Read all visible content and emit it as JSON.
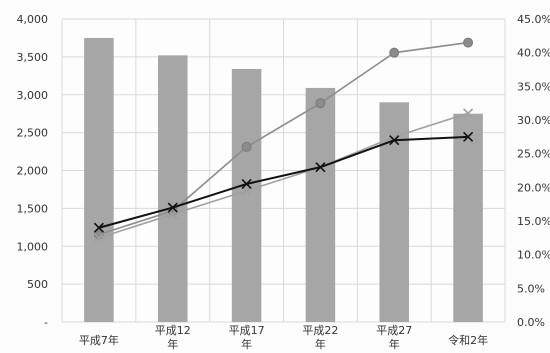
{
  "chart_data": {
    "type": "bar",
    "categories": [
      "平成7年",
      "平成12年",
      "平成17年",
      "平成22年",
      "平成27年",
      "令和2年"
    ],
    "y_left": {
      "min": 0,
      "max": 4000,
      "ticks": [
        0,
        500,
        1000,
        1500,
        2000,
        2500,
        3000,
        3500,
        4000
      ],
      "tick_labels": [
        "-",
        "500",
        "1,000",
        "1,500",
        "2,000",
        "2,500",
        "3,000",
        "3,500",
        "4,000"
      ]
    },
    "y_right": {
      "min": 0,
      "max": 45,
      "ticks": [
        0,
        5,
        10,
        15,
        20,
        25,
        30,
        35,
        40,
        45
      ],
      "tick_labels": [
        "0.0%",
        "5.0%",
        "10.0%",
        "15.0%",
        "20.0%",
        "25.0%",
        "30.0%",
        "35.0%",
        "40.0%",
        "45.0%"
      ]
    },
    "grid": true,
    "legend": "none",
    "series": [
      {
        "type": "bar",
        "axis": "left",
        "color": "#a6a6a6",
        "values": [
          3750,
          3520,
          3340,
          3090,
          2900,
          2750
        ]
      },
      {
        "type": "line",
        "axis": "right",
        "marker": "circle",
        "color": "#8c8c8c",
        "values": [
          13.0,
          16.5,
          26.0,
          32.5,
          40.0,
          41.5
        ]
      },
      {
        "type": "line",
        "axis": "right",
        "marker": "x",
        "color": "#a0a0a0",
        "values": [
          12.5,
          16.0,
          19.5,
          23.0,
          27.5,
          31.0
        ]
      },
      {
        "type": "line",
        "axis": "right",
        "marker": "x",
        "color": "#111111",
        "values": [
          14.0,
          17.0,
          20.5,
          23.0,
          27.0,
          27.5
        ]
      }
    ]
  }
}
